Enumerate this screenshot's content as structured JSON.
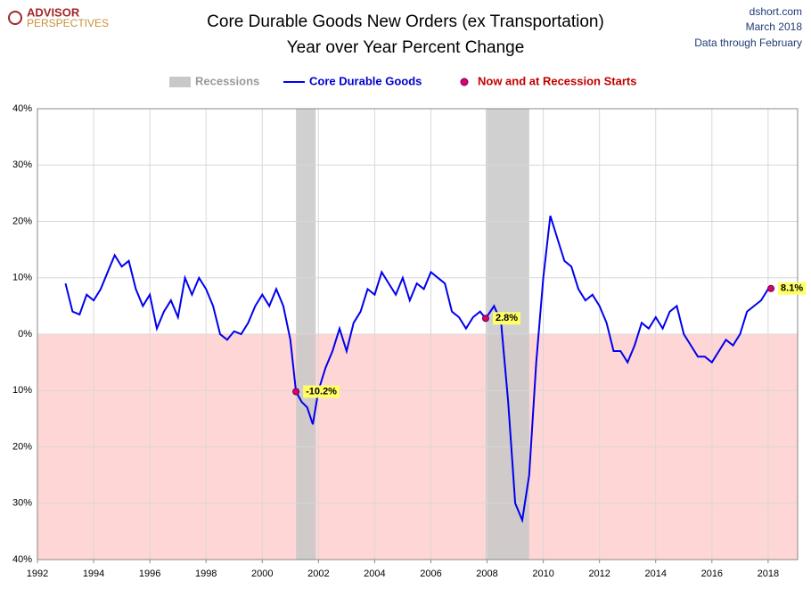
{
  "chart_data": {
    "type": "line",
    "title": "Core Durable Goods New Orders (ex Transportation)",
    "subtitle": "Year over Year Percent Change",
    "logo": [
      "ADVISOR",
      "PERSPECTIVES"
    ],
    "source": [
      "dshort.com",
      "March 2018",
      "Data through February"
    ],
    "xlim": [
      1992,
      2019.05
    ],
    "xticks": [
      1992,
      1994,
      1996,
      1998,
      2000,
      2002,
      2004,
      2006,
      2008,
      2010,
      2012,
      2014,
      2016,
      2018
    ],
    "ylim": [
      -40,
      40
    ],
    "yticks": [
      {
        "value": 40,
        "label": "40%"
      },
      {
        "value": 30,
        "label": "30%"
      },
      {
        "value": 20,
        "label": "20%"
      },
      {
        "value": 10,
        "label": "10%"
      },
      {
        "value": 0,
        "label": "0%"
      },
      {
        "value": -10,
        "label": "10%"
      },
      {
        "value": -20,
        "label": "20%"
      },
      {
        "value": -30,
        "label": "30%"
      },
      {
        "value": -40,
        "label": "40%"
      }
    ],
    "grid": true,
    "recessions": {
      "name": "Recessions",
      "color": "#c8c8c8",
      "spans": [
        [
          2001.2,
          2001.9
        ],
        [
          2007.95,
          2009.5
        ]
      ]
    },
    "series": [
      {
        "name": "Core Durable Goods",
        "color": "#0000ee",
        "x": [
          1993.0,
          1993.25,
          1993.5,
          1993.75,
          1994.0,
          1994.25,
          1994.5,
          1994.75,
          1995.0,
          1995.25,
          1995.5,
          1995.75,
          1996.0,
          1996.25,
          1996.5,
          1996.75,
          1997.0,
          1997.25,
          1997.5,
          1997.75,
          1998.0,
          1998.25,
          1998.5,
          1998.75,
          1999.0,
          1999.25,
          1999.5,
          1999.75,
          2000.0,
          2000.25,
          2000.5,
          2000.75,
          2001.0,
          2001.2,
          2001.4,
          2001.6,
          2001.8,
          2002.0,
          2002.25,
          2002.5,
          2002.75,
          2003.0,
          2003.25,
          2003.5,
          2003.75,
          2004.0,
          2004.25,
          2004.5,
          2004.75,
          2005.0,
          2005.25,
          2005.5,
          2005.75,
          2006.0,
          2006.25,
          2006.5,
          2006.75,
          2007.0,
          2007.25,
          2007.5,
          2007.75,
          2007.95,
          2008.25,
          2008.5,
          2008.75,
          2009.0,
          2009.25,
          2009.5,
          2009.75,
          2010.0,
          2010.25,
          2010.5,
          2010.75,
          2011.0,
          2011.25,
          2011.5,
          2011.75,
          2012.0,
          2012.25,
          2012.5,
          2012.75,
          2013.0,
          2013.25,
          2013.5,
          2013.75,
          2014.0,
          2014.25,
          2014.5,
          2014.75,
          2015.0,
          2015.25,
          2015.5,
          2015.75,
          2016.0,
          2016.25,
          2016.5,
          2016.75,
          2017.0,
          2017.25,
          2017.5,
          2017.75,
          2018.0,
          2018.1
        ],
        "values": [
          9,
          4,
          3.5,
          7,
          6,
          8,
          11,
          14,
          12,
          13,
          8,
          5,
          7,
          1,
          4,
          6,
          3,
          10,
          7,
          10,
          8,
          5,
          0,
          -1,
          0.5,
          0,
          2,
          5,
          7,
          5,
          8,
          5,
          -1,
          -10.2,
          -12,
          -13,
          -16,
          -10,
          -6,
          -3,
          1,
          -3,
          2,
          4,
          8,
          7,
          11,
          9,
          7,
          10,
          6,
          9,
          8,
          11,
          10,
          9,
          4,
          3,
          1,
          3,
          4,
          2.8,
          5,
          2,
          -12,
          -30,
          -33,
          -25,
          -5,
          10,
          21,
          17,
          13,
          12,
          8,
          6,
          7,
          5,
          2,
          -3,
          -3,
          -5,
          -2,
          2,
          1,
          3,
          1,
          4,
          5,
          0,
          -2,
          -4,
          -4,
          -5,
          -3,
          -1,
          -2,
          0,
          4,
          5,
          6,
          8,
          8.1
        ]
      },
      {
        "name": "Now and at Recession Starts",
        "color": "#e0006a",
        "x": [
          2001.2,
          2007.95,
          2018.1
        ],
        "values": [
          -10.2,
          2.8,
          8.1
        ],
        "value_labels": [
          "-10.2%",
          "2.8%",
          "8.1%"
        ]
      }
    ]
  }
}
